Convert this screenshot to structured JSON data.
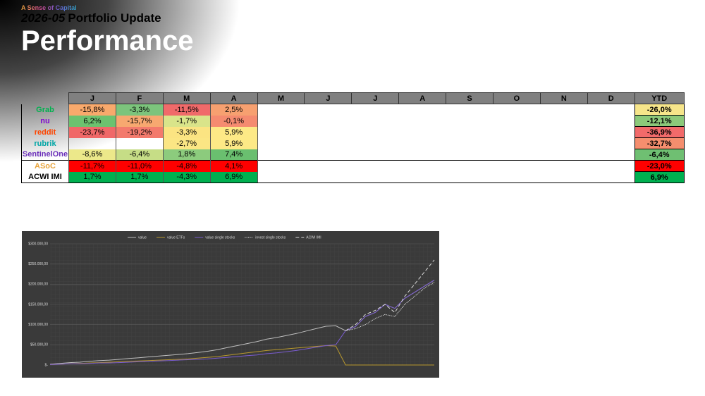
{
  "header": {
    "brand": "A Sense of Capital",
    "date": "2026-05",
    "label": "Portfolio Update",
    "title": "Performance"
  },
  "table": {
    "columns": [
      "J",
      "F",
      "M",
      "A",
      "M",
      "J",
      "J",
      "A",
      "S",
      "O",
      "N",
      "D",
      "YTD"
    ],
    "rows": [
      {
        "name": "Grab",
        "logo_color": "#00b14f",
        "cells": [
          {
            "text": "-15,8%",
            "color": "#f8a96c"
          },
          {
            "text": "-3,3%",
            "color": "#7cc47c"
          },
          {
            "text": "-11,5%",
            "color": "#f06a6a"
          },
          {
            "text": "2,5%",
            "color": "#f7a070"
          }
        ],
        "ytd": {
          "text": "-26,0%",
          "color": "#f6e58a"
        }
      },
      {
        "name": "nu",
        "logo_color": "#820ad1",
        "cells": [
          {
            "text": "6,2%",
            "color": "#6cc26f"
          },
          {
            "text": "-15,7%",
            "color": "#f7a870"
          },
          {
            "text": "-1,7%",
            "color": "#d9e48a"
          },
          {
            "text": "-0,1%",
            "color": "#f58b70"
          }
        ],
        "ytd": {
          "text": "-12,1%",
          "color": "#8cc97a"
        }
      },
      {
        "name": "reddit",
        "logo_color": "#ff4500",
        "cells": [
          {
            "text": "-23,7%",
            "color": "#f06868"
          },
          {
            "text": "-19,2%",
            "color": "#f37a6c"
          },
          {
            "text": "-3,3%",
            "color": "#fbe482"
          },
          {
            "text": "5,9%",
            "color": "#fde986"
          }
        ],
        "ytd": {
          "text": "-36,9%",
          "color": "#f26a6a"
        }
      },
      {
        "name": "rubrik",
        "logo_color": "#00a6a6",
        "cells": [
          null,
          null,
          {
            "text": "-2,7%",
            "color": "#fbe684"
          },
          {
            "text": "5,9%",
            "color": "#fde986"
          }
        ],
        "ytd": {
          "text": "-32,7%",
          "color": "#f58e6e"
        }
      },
      {
        "name": "SentinelOne",
        "logo_color": "#6b2fba",
        "cells": [
          {
            "text": "-8,6%",
            "color": "#ece88a"
          },
          {
            "text": "-6,4%",
            "color": "#c6dd86"
          },
          {
            "text": "1,8%",
            "color": "#8ccb7d"
          },
          {
            "text": "7,4%",
            "color": "#6abf6f"
          }
        ],
        "ytd": {
          "text": "-6,4%",
          "color": "#6fbf72"
        }
      },
      {
        "name": "ASoC",
        "logo_color": "#e8a33a",
        "cells": [
          {
            "text": "-11,7%",
            "color": "#ff0000"
          },
          {
            "text": "-11,0%",
            "color": "#ff0000"
          },
          {
            "text": "-4,8%",
            "color": "#ff0000"
          },
          {
            "text": "4,1%",
            "color": "#ff0000"
          }
        ],
        "ytd": {
          "text": "-23,0%",
          "color": "#ff0000"
        }
      },
      {
        "name": "ACWI IMI",
        "logo_color": "#000000",
        "cells": [
          {
            "text": "1,7%",
            "color": "#00b050"
          },
          {
            "text": "1,7%",
            "color": "#00b050"
          },
          {
            "text": "-4,3%",
            "color": "#00b050"
          },
          {
            "text": "6,9%",
            "color": "#00b050"
          }
        ],
        "ytd": {
          "text": "6,9%",
          "color": "#00b050"
        }
      }
    ]
  },
  "chart_data": {
    "type": "line",
    "ylim": [
      0,
      300000
    ],
    "yticks": [
      {
        "value": 0,
        "label": "$-"
      },
      {
        "value": 50000,
        "label": "$50.000,00"
      },
      {
        "value": 100000,
        "label": "$100.000,00"
      },
      {
        "value": 150000,
        "label": "$150.000,00"
      },
      {
        "value": 200000,
        "label": "$200.000,00"
      },
      {
        "value": 250000,
        "label": "$250.000,00"
      },
      {
        "value": 300000,
        "label": "$300.000,00"
      }
    ],
    "grid": true,
    "series": [
      {
        "name": "value",
        "color": "#bfbfbf",
        "style": "solid",
        "values": [
          2000,
          4000,
          6000,
          7000,
          9000,
          11000,
          12000,
          14000,
          16000,
          18000,
          20000,
          22000,
          24000,
          26000,
          28000,
          31000,
          34000,
          38000,
          43000,
          48000,
          53000,
          58000,
          64000,
          68000,
          73000,
          78000,
          84000,
          90000,
          96000,
          97000,
          85000,
          95000,
          120000,
          130000,
          150000,
          140000,
          165000,
          180000,
          195000,
          210000
        ]
      },
      {
        "name": "value ETFs",
        "color": "#b8982e",
        "style": "solid",
        "values": [
          1000,
          2000,
          3000,
          4000,
          5000,
          6000,
          7000,
          8000,
          9000,
          10000,
          11000,
          12000,
          13000,
          14000,
          15000,
          17000,
          19000,
          21000,
          24000,
          27000,
          30000,
          33000,
          36000,
          38000,
          40000,
          42000,
          44000,
          46000,
          48000,
          47000,
          0,
          0,
          0,
          0,
          0,
          0,
          0,
          0,
          0,
          0
        ]
      },
      {
        "name": "value single stocks",
        "color": "#7a5ccf",
        "style": "solid",
        "values": [
          1000,
          2000,
          3000,
          3000,
          4000,
          5000,
          5000,
          6000,
          7000,
          8000,
          9000,
          10000,
          11000,
          12000,
          13000,
          14000,
          15000,
          17000,
          19000,
          21000,
          23000,
          25000,
          28000,
          30000,
          33000,
          36000,
          40000,
          44000,
          48000,
          50000,
          85000,
          95000,
          120000,
          130000,
          150000,
          140000,
          165000,
          180000,
          195000,
          210000
        ]
      },
      {
        "name": "invest single stocks",
        "color": "#e6e6e6",
        "style": "dotted",
        "values": [
          null,
          null,
          null,
          null,
          null,
          null,
          null,
          null,
          null,
          null,
          null,
          null,
          null,
          null,
          null,
          null,
          null,
          null,
          null,
          null,
          null,
          null,
          null,
          null,
          null,
          null,
          null,
          null,
          null,
          null,
          85000,
          90000,
          100000,
          115000,
          125000,
          120000,
          150000,
          170000,
          190000,
          205000
        ]
      },
      {
        "name": "ACWI IMI",
        "color": "#d9d9d9",
        "style": "dashed",
        "values": [
          null,
          null,
          null,
          null,
          null,
          null,
          null,
          null,
          null,
          null,
          null,
          null,
          null,
          null,
          null,
          null,
          null,
          null,
          null,
          null,
          null,
          null,
          null,
          null,
          null,
          null,
          null,
          null,
          null,
          null,
          85000,
          100000,
          125000,
          135000,
          150000,
          130000,
          170000,
          200000,
          230000,
          260000
        ]
      }
    ]
  }
}
